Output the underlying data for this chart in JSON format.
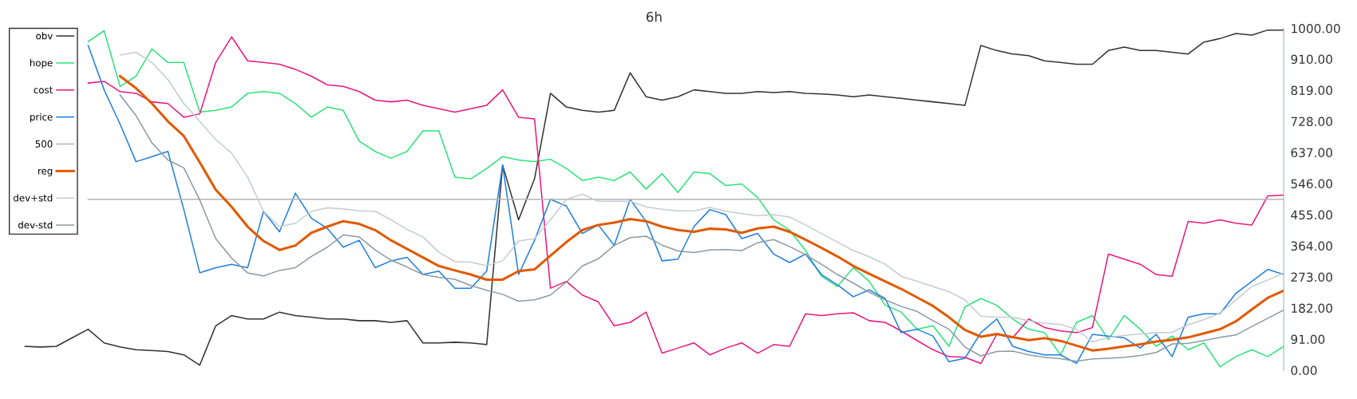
{
  "chart_data": {
    "type": "line",
    "title": "6h",
    "categories": [
      null,
      null,
      null,
      null,
      null,
      null,
      null,
      null,
      null,
      null,
      null,
      null,
      null,
      null,
      null,
      null,
      null,
      null,
      null,
      null,
      null,
      null,
      null,
      null,
      null,
      null,
      null,
      null,
      null,
      null,
      null,
      null,
      null,
      null,
      null,
      null,
      null,
      null,
      null,
      null,
      null,
      null,
      null,
      null,
      null,
      null,
      null,
      null,
      null,
      null,
      null,
      null,
      null,
      null,
      null,
      null,
      null,
      null,
      null,
      null,
      null,
      null,
      null,
      null,
      null,
      null,
      null,
      null,
      null,
      null,
      null,
      null,
      null,
      null,
      null,
      null,
      null,
      null,
      null,
      null
    ],
    "series": [
      {
        "name": "obv",
        "color": "#333333",
        "values": [
          70,
          68,
          70,
          95,
          120,
          80,
          68,
          60,
          58,
          55,
          45,
          15,
          130,
          160,
          150,
          150,
          170,
          160,
          155,
          150,
          150,
          145,
          145,
          140,
          145,
          80,
          80,
          82,
          80,
          75,
          600,
          440,
          560,
          810,
          770,
          760,
          755,
          760,
          870,
          800,
          790,
          800,
          820,
          815,
          810,
          810,
          815,
          812,
          815,
          810,
          808,
          805,
          800,
          805,
          800,
          795,
          790,
          785,
          780,
          775,
          950,
          935,
          925,
          920,
          905,
          900,
          895,
          895,
          935,
          945,
          935,
          935,
          930,
          925,
          960,
          970,
          985,
          980,
          995,
          995
        ]
      },
      {
        "name": "hope",
        "color": "#2ee27a",
        "values": [
          null,
          null,
          null,
          null,
          961,
          993,
          830,
          860,
          940,
          900,
          900,
          755,
          760,
          770,
          810,
          815,
          810,
          780,
          740,
          770,
          760,
          670,
          640,
          620,
          640,
          700,
          700,
          565,
          560,
          590,
          625,
          615,
          610,
          617,
          590,
          555,
          565,
          555,
          580,
          530,
          575,
          520,
          580,
          575,
          540,
          545,
          505,
          440,
          410,
          350,
          275,
          245,
          300,
          260,
          190,
          170,
          120,
          130,
          70,
          185,
          210,
          190,
          150,
          120,
          110,
          45,
          140,
          160,
          90,
          160,
          120,
          70,
          100,
          60,
          80,
          10,
          40,
          60,
          40,
          70
        ]
      },
      {
        "name": "cost",
        "color": "#e6197f",
        "values": [
          null,
          null,
          null,
          null,
          840,
          845,
          815,
          810,
          785,
          780,
          740,
          750,
          900,
          975,
          905,
          900,
          895,
          880,
          860,
          835,
          830,
          815,
          790,
          785,
          790,
          775,
          765,
          755,
          765,
          775,
          820,
          740,
          735,
          240,
          260,
          220,
          200,
          130,
          140,
          170,
          50,
          65,
          80,
          45,
          65,
          80,
          50,
          75,
          70,
          165,
          160,
          165,
          168,
          145,
          140,
          115,
          87,
          60,
          40,
          38,
          20,
          105,
          95,
          150,
          125,
          115,
          110,
          125,
          340,
          325,
          310,
          280,
          275,
          435,
          430,
          440,
          430,
          425,
          510,
          512
        ]
      },
      {
        "name": "price",
        "color": "#1f7fe0",
        "values": [
          null,
          null,
          null,
          null,
          950,
          820,
          720,
          610,
          625,
          640,
          470,
          285,
          300,
          310,
          300,
          465,
          405,
          518,
          445,
          415,
          360,
          380,
          300,
          320,
          330,
          280,
          290,
          240,
          240,
          290,
          600,
          280,
          380,
          500,
          480,
          400,
          425,
          365,
          500,
          435,
          320,
          325,
          420,
          470,
          455,
          385,
          400,
          340,
          315,
          340,
          280,
          250,
          215,
          235,
          210,
          110,
          120,
          100,
          25,
          35,
          110,
          150,
          70,
          55,
          45,
          45,
          20,
          105,
          100,
          95,
          65,
          105,
          40,
          155,
          165,
          165,
          225,
          260,
          295,
          280
        ]
      },
      {
        "name": "500",
        "color": "#b4b4b4",
        "values": [
          null,
          null,
          null,
          null,
          500,
          500,
          500,
          500,
          500,
          500,
          500,
          500,
          500,
          500,
          500,
          500,
          500,
          500,
          500,
          500,
          500,
          500,
          500,
          500,
          500,
          500,
          500,
          500,
          500,
          500,
          500,
          500,
          500,
          500,
          500,
          500,
          500,
          500,
          500,
          500,
          500,
          500,
          500,
          500,
          500,
          500,
          500,
          500,
          500,
          500,
          500,
          500,
          500,
          500,
          500,
          500,
          500,
          500,
          500,
          500,
          500,
          500,
          500,
          500,
          500,
          500,
          500,
          500,
          500,
          500,
          500,
          500,
          500,
          500,
          500,
          500,
          500,
          500,
          500,
          500
        ]
      },
      {
        "name": "reg",
        "color": "#e05a00",
        "values": [
          null,
          null,
          null,
          null,
          null,
          null,
          860,
          825,
          780,
          728,
          685,
          608,
          528,
          478,
          420,
          378,
          352,
          365,
          402,
          420,
          436,
          428,
          410,
          380,
          355,
          330,
          305,
          292,
          280,
          265,
          265,
          290,
          295,
          335,
          375,
          410,
          425,
          432,
          442,
          436,
          420,
          410,
          405,
          414,
          412,
          402,
          415,
          420,
          405,
          382,
          358,
          333,
          305,
          282,
          260,
          238,
          213,
          188,
          155,
          118,
          98,
          106,
          97,
          88,
          94,
          86,
          72,
          58,
          63,
          70,
          76,
          84,
          89,
          96,
          108,
          120,
          143,
          178,
          212,
          233
        ]
      },
      {
        "name": "dev+std",
        "color": "#c5ccd2",
        "values": [
          null,
          null,
          null,
          null,
          null,
          null,
          922,
          930,
          900,
          850,
          780,
          728,
          675,
          635,
          565,
          465,
          420,
          430,
          465,
          475,
          472,
          466,
          465,
          440,
          412,
          390,
          345,
          318,
          316,
          306,
          320,
          378,
          385,
          440,
          500,
          515,
          494,
          494,
          494,
          478,
          471,
          466,
          466,
          476,
          465,
          458,
          452,
          455,
          448,
          425,
          400,
          375,
          350,
          332,
          310,
          275,
          260,
          245,
          230,
          206,
          158,
          155,
          155,
          145,
          137,
          134,
          120,
          83,
          96,
          102,
          106,
          110,
          111,
          133,
          148,
          167,
          205,
          245,
          264,
          284
        ]
      },
      {
        "name": "dev-std",
        "color": "#8d9aa4",
        "values": [
          null,
          null,
          null,
          null,
          null,
          null,
          805,
          745,
          665,
          615,
          592,
          498,
          385,
          328,
          285,
          276,
          292,
          300,
          333,
          360,
          396,
          390,
          352,
          322,
          302,
          280,
          272,
          266,
          248,
          234,
          222,
          202,
          206,
          220,
          258,
          305,
          326,
          365,
          388,
          392,
          366,
          349,
          344,
          352,
          353,
          350,
          373,
          382,
          362,
          338,
          310,
          280,
          255,
          228,
          206,
          187,
          172,
          145,
          120,
          68,
          42,
          55,
          56,
          45,
          38,
          34,
          26,
          33,
          35,
          38,
          43,
          52,
          77,
          79,
          87,
          96,
          103,
          128,
          152,
          176
        ]
      }
    ],
    "ylim": [
      0,
      1000
    ],
    "yticks": [
      {
        "value": 0,
        "label": "0.00"
      },
      {
        "value": 91,
        "label": "91.00"
      },
      {
        "value": 182,
        "label": "182.00"
      },
      {
        "value": 273,
        "label": "273.00"
      },
      {
        "value": 364,
        "label": "364.00"
      },
      {
        "value": 455,
        "label": "455.00"
      },
      {
        "value": 546,
        "label": "546.00"
      },
      {
        "value": 637,
        "label": "637.00"
      },
      {
        "value": 728,
        "label": "728.00"
      },
      {
        "value": 819,
        "label": "819.00"
      },
      {
        "value": 910,
        "label": "910.00"
      },
      {
        "value": 1000,
        "label": "1000.00"
      }
    ],
    "tick_labels": "y",
    "legend": "top left",
    "grid": false
  }
}
